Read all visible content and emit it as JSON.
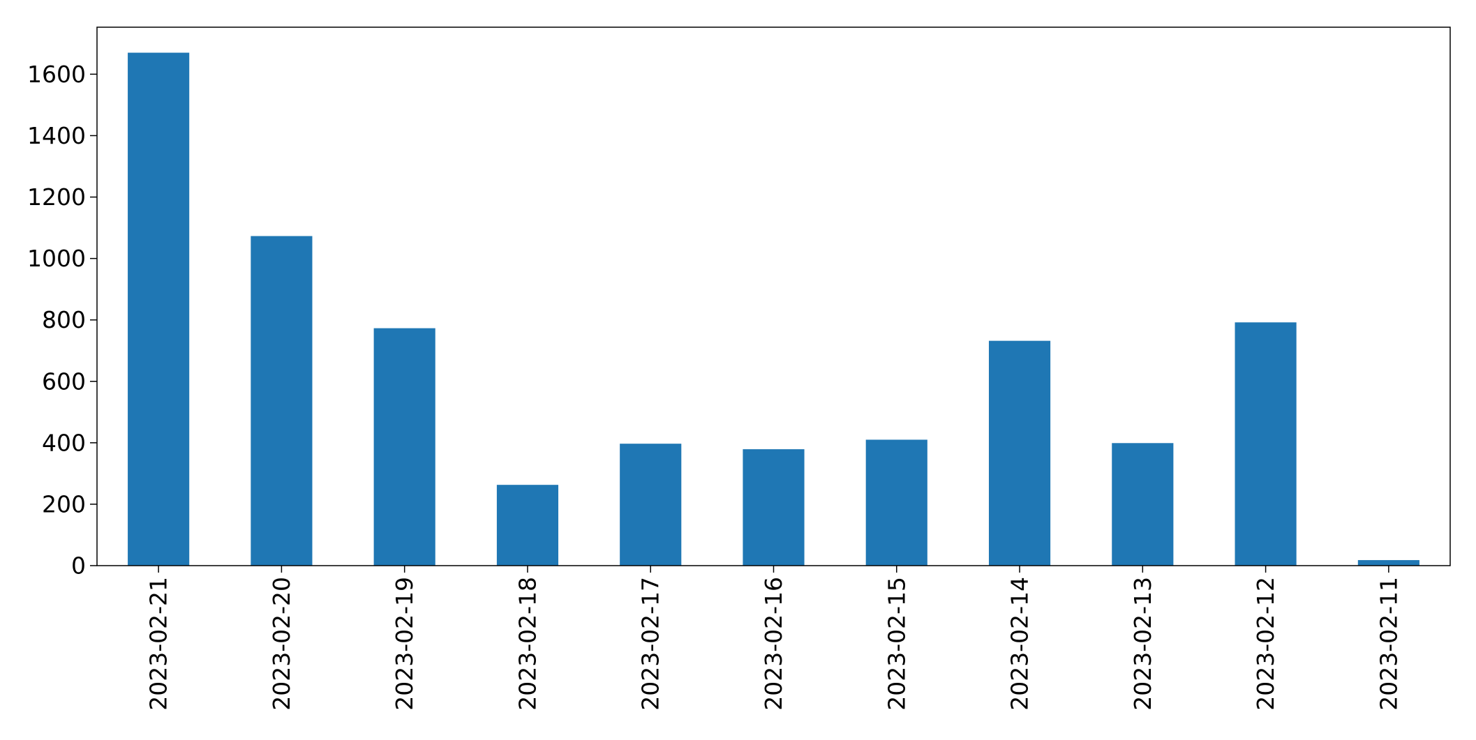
{
  "chart_data": {
    "type": "bar",
    "title": "",
    "xlabel": "",
    "ylabel": "",
    "categories": [
      "2023-02-21",
      "2023-02-20",
      "2023-02-19",
      "2023-02-18",
      "2023-02-17",
      "2023-02-16",
      "2023-02-15",
      "2023-02-14",
      "2023-02-13",
      "2023-02-12",
      "2023-02-11"
    ],
    "values": [
      1670,
      1073,
      773,
      263,
      397,
      379,
      410,
      732,
      399,
      792,
      18
    ],
    "ylim": [
      0,
      1753
    ],
    "yticks": [
      0,
      200,
      400,
      600,
      800,
      1000,
      1200,
      1400,
      1600
    ],
    "bar_color": "#1f77b4",
    "grid": false,
    "legend": "none"
  }
}
